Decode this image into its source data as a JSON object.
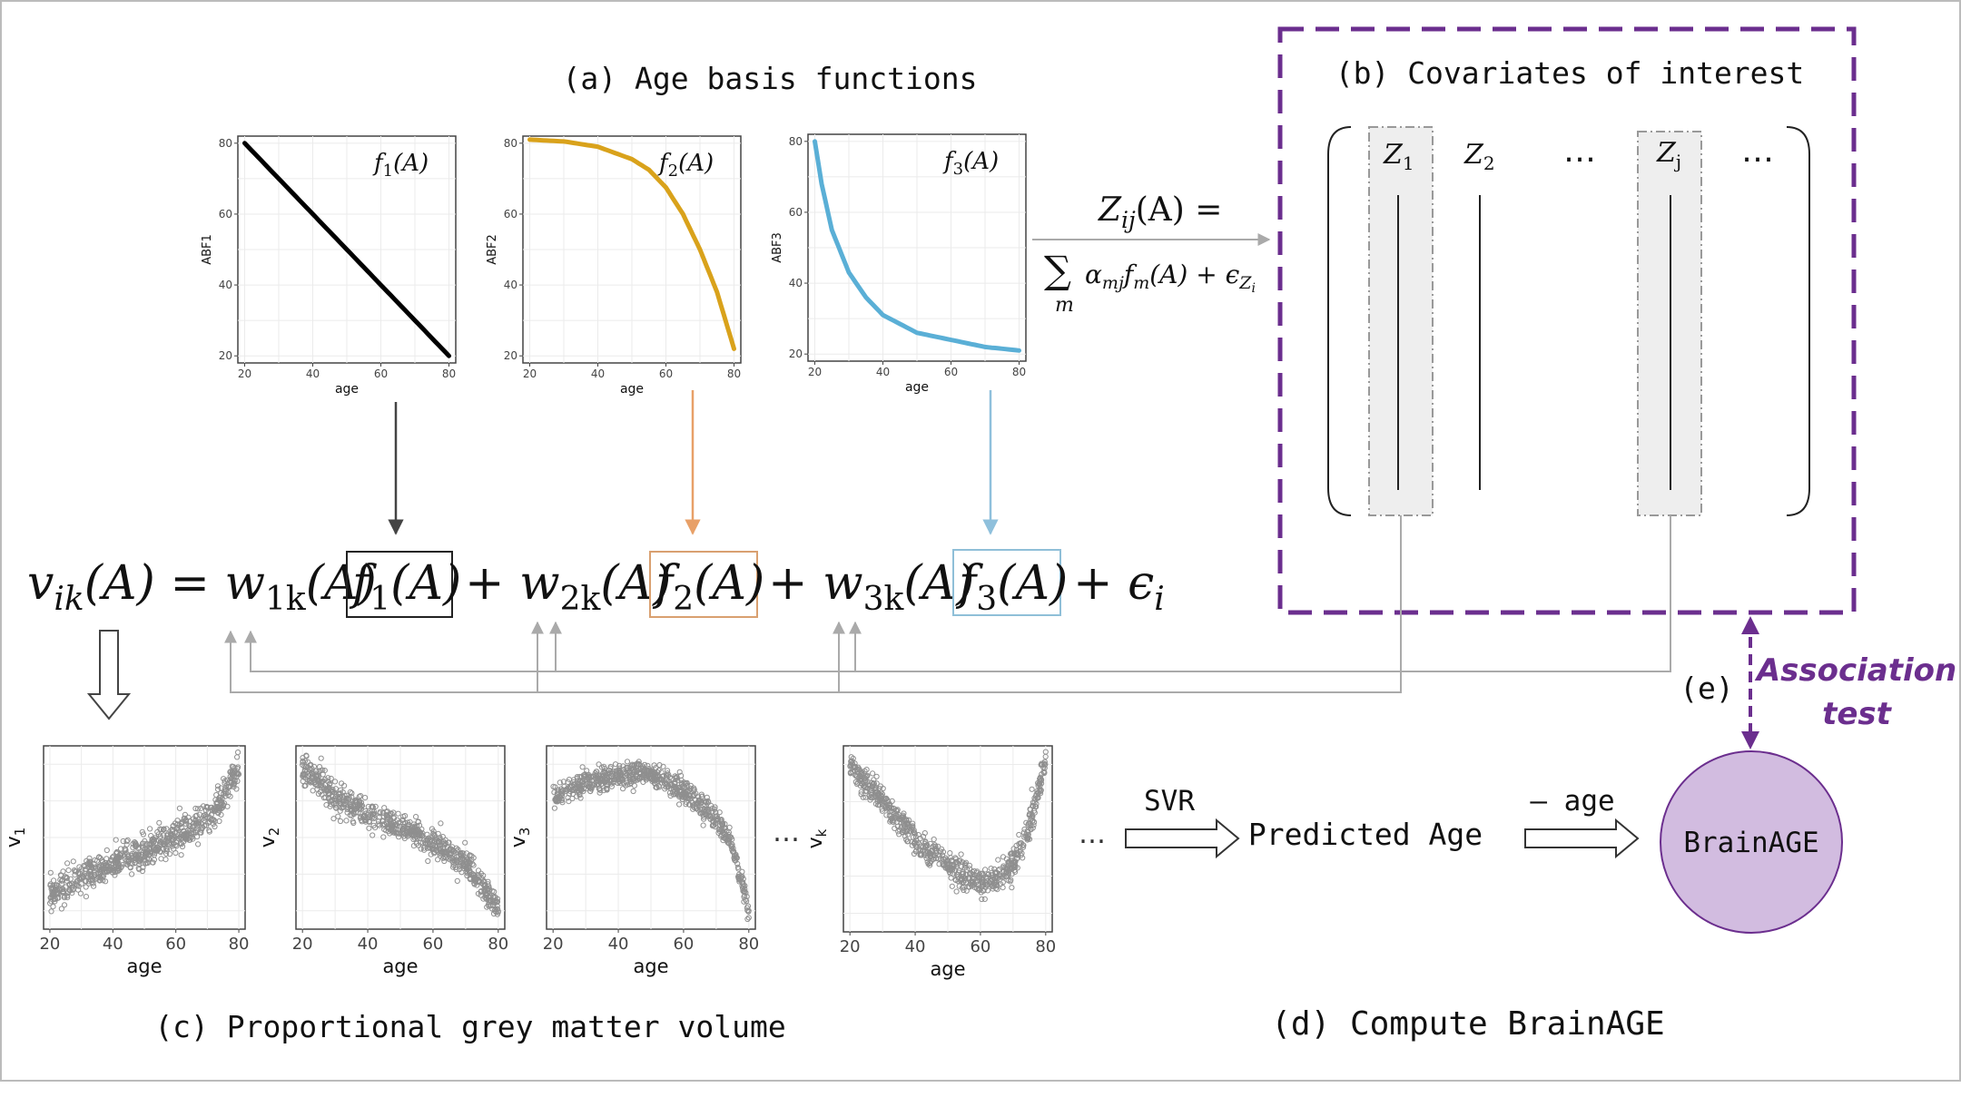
{
  "labels": {
    "a": "(a) Age basis functions",
    "b": "(b) Covariates of interest",
    "c": "(c) Proportional grey matter volume",
    "d": "(d) Compute BrainAGE",
    "e": "(e)",
    "assoc_line1": "Association",
    "assoc_line2": "test",
    "svr": "SVR",
    "predicted_age": "Predicted Age",
    "minus_age": "– age",
    "brainage": "BrainAGE",
    "ellipsis": "…"
  },
  "covariates": {
    "z1": "Z",
    "z1_sub": "1",
    "z2": "Z",
    "z2_sub": "2",
    "zj": "Z",
    "zj_sub": "j",
    "dots": "…"
  },
  "formula_z": {
    "lhs": "Z",
    "lhs_sub": "ij",
    "lhs_arg": "(A) =",
    "sum": "∑",
    "sum_sub": "m",
    "rhs": "α",
    "rhs_sub": "mj",
    "rhs2": "f",
    "rhs2_sub": "m",
    "rhs3": "(A) + ϵ",
    "rhs3_sub": "Z",
    "rhs3_subsub": "i"
  },
  "equation": {
    "v": "v",
    "v_sub": "ik",
    "lhs_rest": "(A) = w",
    "w1_sub": "1k",
    "mid1": "(A)",
    "f": "f",
    "f1_sub": "1",
    "farg": "(A)",
    "plus_w": "+ w",
    "w2_sub": "2k",
    "mid2": "(A)",
    "f2_sub": "2",
    "w3_sub": "3k",
    "mid3": "(A)",
    "f3_sub": "3",
    "tail": "+ ϵ",
    "tail_sub": "i"
  },
  "colors": {
    "f1": "#000000",
    "f2": "#D9A21B",
    "f3": "#5AAFD6",
    "arrow_f1": "#444444",
    "arrow_f2": "#E8A068",
    "arrow_f3": "#8FC0DC",
    "box_f1": "#222222",
    "box_f2": "#D9A070",
    "box_f3": "#8FBFD8",
    "purple": "#6B2E8E",
    "brainage_fill": "#D2BCE0",
    "scatter": "#8F8F8F",
    "grid": "#EBEBEB",
    "connector": "#AAAAAA"
  },
  "chart_data": [
    {
      "type": "line",
      "name": "basis-1",
      "label": "f1(A)",
      "ylabel": "ABF1",
      "xlabel": "age",
      "xticks": [
        "20",
        "40",
        "60",
        "80"
      ],
      "yticks": [
        "20",
        "40",
        "60",
        "80"
      ],
      "xlim": [
        18,
        82
      ],
      "ylim": [
        18,
        82
      ],
      "x": [
        20,
        30,
        40,
        50,
        60,
        70,
        80
      ],
      "y": [
        80,
        70,
        60,
        50,
        40,
        30,
        20
      ],
      "color": "#000000"
    },
    {
      "type": "line",
      "name": "basis-2",
      "label": "f2(A)",
      "ylabel": "ABF2",
      "xlabel": "age",
      "xticks": [
        "20",
        "40",
        "60",
        "80"
      ],
      "yticks": [
        "20",
        "40",
        "60",
        "80"
      ],
      "xlim": [
        18,
        82
      ],
      "ylim": [
        18,
        82
      ],
      "x": [
        20,
        30,
        40,
        50,
        55,
        60,
        65,
        70,
        75,
        80
      ],
      "y": [
        81,
        80.5,
        79,
        75.5,
        72.5,
        67.5,
        60,
        50,
        38,
        22
      ],
      "color": "#D9A21B"
    },
    {
      "type": "line",
      "name": "basis-3",
      "label": "f3(A)",
      "ylabel": "ABF3",
      "xlabel": "age",
      "xticks": [
        "20",
        "40",
        "60",
        "80"
      ],
      "yticks": [
        "20",
        "40",
        "60",
        "80"
      ],
      "xlim": [
        18,
        82
      ],
      "ylim": [
        18,
        82
      ],
      "x": [
        20,
        22,
        25,
        30,
        35,
        40,
        50,
        60,
        70,
        80
      ],
      "y": [
        80,
        68,
        55,
        43,
        36,
        31,
        26,
        24,
        22,
        21
      ],
      "color": "#5AAFD6"
    },
    {
      "type": "scatter",
      "name": "volume-1",
      "ylabel": "v",
      "ylabel_sub": "1",
      "xlabel": "age",
      "xticks": [
        "20",
        "40",
        "60",
        "80"
      ],
      "xlim": [
        18,
        82
      ],
      "ylim": [
        0,
        1
      ],
      "trend_x": [
        20,
        30,
        40,
        50,
        60,
        70,
        75,
        80
      ],
      "trend_y": [
        0.18,
        0.3,
        0.36,
        0.42,
        0.5,
        0.6,
        0.7,
        0.9
      ],
      "spread": 0.08,
      "n": 700,
      "color": "#8F8F8F"
    },
    {
      "type": "scatter",
      "name": "volume-2",
      "ylabel": "v",
      "ylabel_sub": "2",
      "xlabel": "age",
      "xticks": [
        "20",
        "40",
        "60",
        "80"
      ],
      "xlim": [
        18,
        82
      ],
      "ylim": [
        0,
        1
      ],
      "trend_x": [
        20,
        30,
        40,
        50,
        60,
        70,
        80
      ],
      "trend_y": [
        0.88,
        0.72,
        0.62,
        0.56,
        0.47,
        0.36,
        0.12
      ],
      "spread": 0.07,
      "n": 700,
      "color": "#8F8F8F"
    },
    {
      "type": "scatter",
      "name": "volume-3",
      "ylabel": "v",
      "ylabel_sub": "3",
      "xlabel": "age",
      "xticks": [
        "20",
        "40",
        "60",
        "80"
      ],
      "xlim": [
        18,
        82
      ],
      "ylim": [
        0,
        1
      ],
      "trend_x": [
        20,
        30,
        40,
        50,
        60,
        70,
        75,
        80
      ],
      "trend_y": [
        0.72,
        0.8,
        0.84,
        0.84,
        0.76,
        0.6,
        0.45,
        0.1
      ],
      "spread": 0.06,
      "n": 700,
      "color": "#8F8F8F"
    },
    {
      "type": "scatter",
      "name": "volume-k",
      "ylabel": "v",
      "ylabel_sub": "k",
      "xlabel": "age",
      "xticks": [
        "20",
        "40",
        "60",
        "80"
      ],
      "xlim": [
        18,
        82
      ],
      "ylim": [
        0,
        1
      ],
      "trend_x": [
        20,
        30,
        40,
        50,
        60,
        65,
        70,
        75,
        80
      ],
      "trend_y": [
        0.9,
        0.7,
        0.5,
        0.35,
        0.26,
        0.28,
        0.36,
        0.55,
        0.92
      ],
      "spread": 0.07,
      "n": 700,
      "color": "#8F8F8F"
    }
  ]
}
